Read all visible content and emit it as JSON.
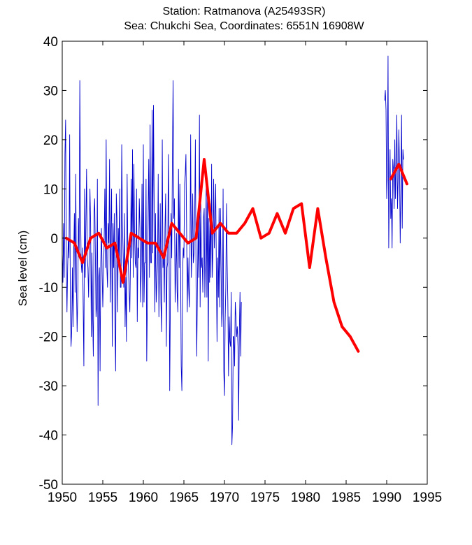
{
  "chart_data": {
    "type": "line",
    "title": "Station: Ratmanova  (A25493SR)",
    "subtitle": "Sea: Chukchi Sea, Coordinates: 6551N 16908W",
    "xlabel": "",
    "ylabel": "Sea level (cm)",
    "xlim": [
      1950,
      1995
    ],
    "ylim": [
      -50,
      40
    ],
    "x_ticks": [
      1950,
      1955,
      1960,
      1965,
      1970,
      1975,
      1980,
      1985,
      1990,
      1995
    ],
    "y_ticks": [
      40,
      30,
      20,
      10,
      0,
      -10,
      -20,
      -30,
      -40,
      -50
    ],
    "grid": false,
    "series": [
      {
        "kind": "monthly",
        "color": "#0000cc",
        "segments": [
          {
            "start_year": 1950.0,
            "values": [
              -3,
              -9,
              3,
              -8,
              17,
              24,
              -5,
              -15,
              -6,
              0,
              -4,
              21,
              -14,
              -22,
              -19,
              -6,
              -18,
              -3,
              5,
              -11,
              13,
              -9,
              -19,
              -12,
              4,
              -3,
              32,
              7,
              -5,
              -7,
              -2,
              -14,
              -26,
              10,
              -8,
              3,
              14,
              -4,
              -6,
              -12,
              -2,
              10,
              3,
              -20,
              -3,
              -16,
              -24,
              5,
              8,
              -3,
              -16,
              -14,
              12,
              -34,
              -8,
              -6,
              -27,
              -5,
              2,
              -7,
              -14,
              -7,
              -1,
              10,
              -6,
              20,
              -6,
              -10,
              3,
              -1,
              16,
              -13,
              2,
              10,
              -22,
              3,
              -6,
              5,
              -18,
              -27,
              9,
              4,
              -15,
              2,
              -4,
              10,
              -10,
              -10,
              19,
              4,
              -3,
              -10,
              5,
              -18,
              -8,
              -21,
              13,
              -2,
              -6,
              -11,
              -15,
              -4,
              12,
              -4,
              18,
              -8,
              15,
              1,
              -5,
              -6,
              10,
              -17,
              -2,
              -4,
              8,
              2,
              -13,
              -5,
              11,
              -14,
              19,
              -13,
              -5,
              -5,
              12,
              -25,
              -12,
              5,
              16,
              -8,
              23,
              -5,
              -5,
              26,
              -3,
              27,
              7,
              -15,
              5,
              -13,
              -9,
              -5,
              13,
              -16,
              -6,
              7,
              -13,
              -19,
              20,
              -6,
              -3,
              -13,
              2,
              9,
              -22,
              -6,
              -5,
              17,
              1,
              -31,
              -12,
              5,
              -4,
              16,
              32,
              4,
              8,
              -13,
              -7,
              1,
              -11,
              -15,
              14,
              -6,
              11,
              -3,
              -26,
              -31,
              -8,
              -2,
              -4,
              11,
              13,
              17,
              2,
              -15,
              -4,
              -10,
              -14,
              -3,
              21,
              -8,
              -2,
              9,
              -5,
              -3,
              5,
              20,
              -10,
              -24,
              -10,
              2,
              -8,
              25,
              -14,
              7,
              -6,
              -4,
              -11,
              4,
              6,
              -12,
              -3,
              11,
              -12,
              11,
              -25,
              4,
              -9,
              7,
              -8,
              15,
              -8,
              -2,
              12,
              -2,
              4,
              11,
              -6,
              -21,
              -4,
              -12,
              6,
              -14,
              6,
              -6,
              -18,
              -14,
              10,
              -27,
              -32,
              -17,
              -10,
              7,
              -5,
              -13,
              -28,
              -16,
              -21,
              -22,
              -11,
              -42,
              -38,
              -20,
              -20,
              -26,
              -13,
              -16,
              -20,
              -18,
              -22,
              -37,
              -19,
              -11,
              -24,
              -13
            ]
          },
          {
            "start_year": 1989.75,
            "values": [
              28,
              30,
              26,
              8,
              13,
              37,
              -2,
              10,
              18,
              4,
              8,
              -2,
              16,
              14,
              6,
              20,
              8,
              15,
              25,
              6,
              12,
              22,
              14,
              -1,
              10,
              25,
              2,
              18,
              16
            ]
          }
        ]
      },
      {
        "kind": "annual",
        "color": "#ff0000",
        "segments": [
          {
            "x": [
              1950.5,
              1951.5,
              1952.5,
              1953.5,
              1954.5,
              1955.5,
              1956.5,
              1957.5,
              1958.5,
              1959.5,
              1960.5,
              1961.5,
              1962.5,
              1963.5,
              1964.5,
              1965.5,
              1966.5,
              1967.5,
              1968.5,
              1969.5,
              1970.5,
              1971.5,
              1972.5,
              1973.5,
              1974.5,
              1975.5,
              1976.5,
              1977.5,
              1978.5,
              1979.5,
              1980.5,
              1981.5,
              1982.5,
              1983.5,
              1984.5,
              1985.5,
              1986.5
            ],
            "y": [
              0,
              -1,
              -5,
              0,
              1,
              -2,
              -1,
              -9,
              1,
              0,
              -1,
              -1,
              -4,
              3,
              1,
              -1,
              0,
              16,
              1,
              3,
              1,
              1,
              3,
              6,
              0,
              1,
              5,
              1,
              6,
              7,
              -6,
              6,
              -4,
              -13,
              -18,
              -20,
              -23
            ]
          },
          {
            "x": [
              1990.5,
              1991.5,
              1992.5
            ],
            "y": [
              12,
              15,
              11
            ]
          }
        ]
      }
    ]
  }
}
